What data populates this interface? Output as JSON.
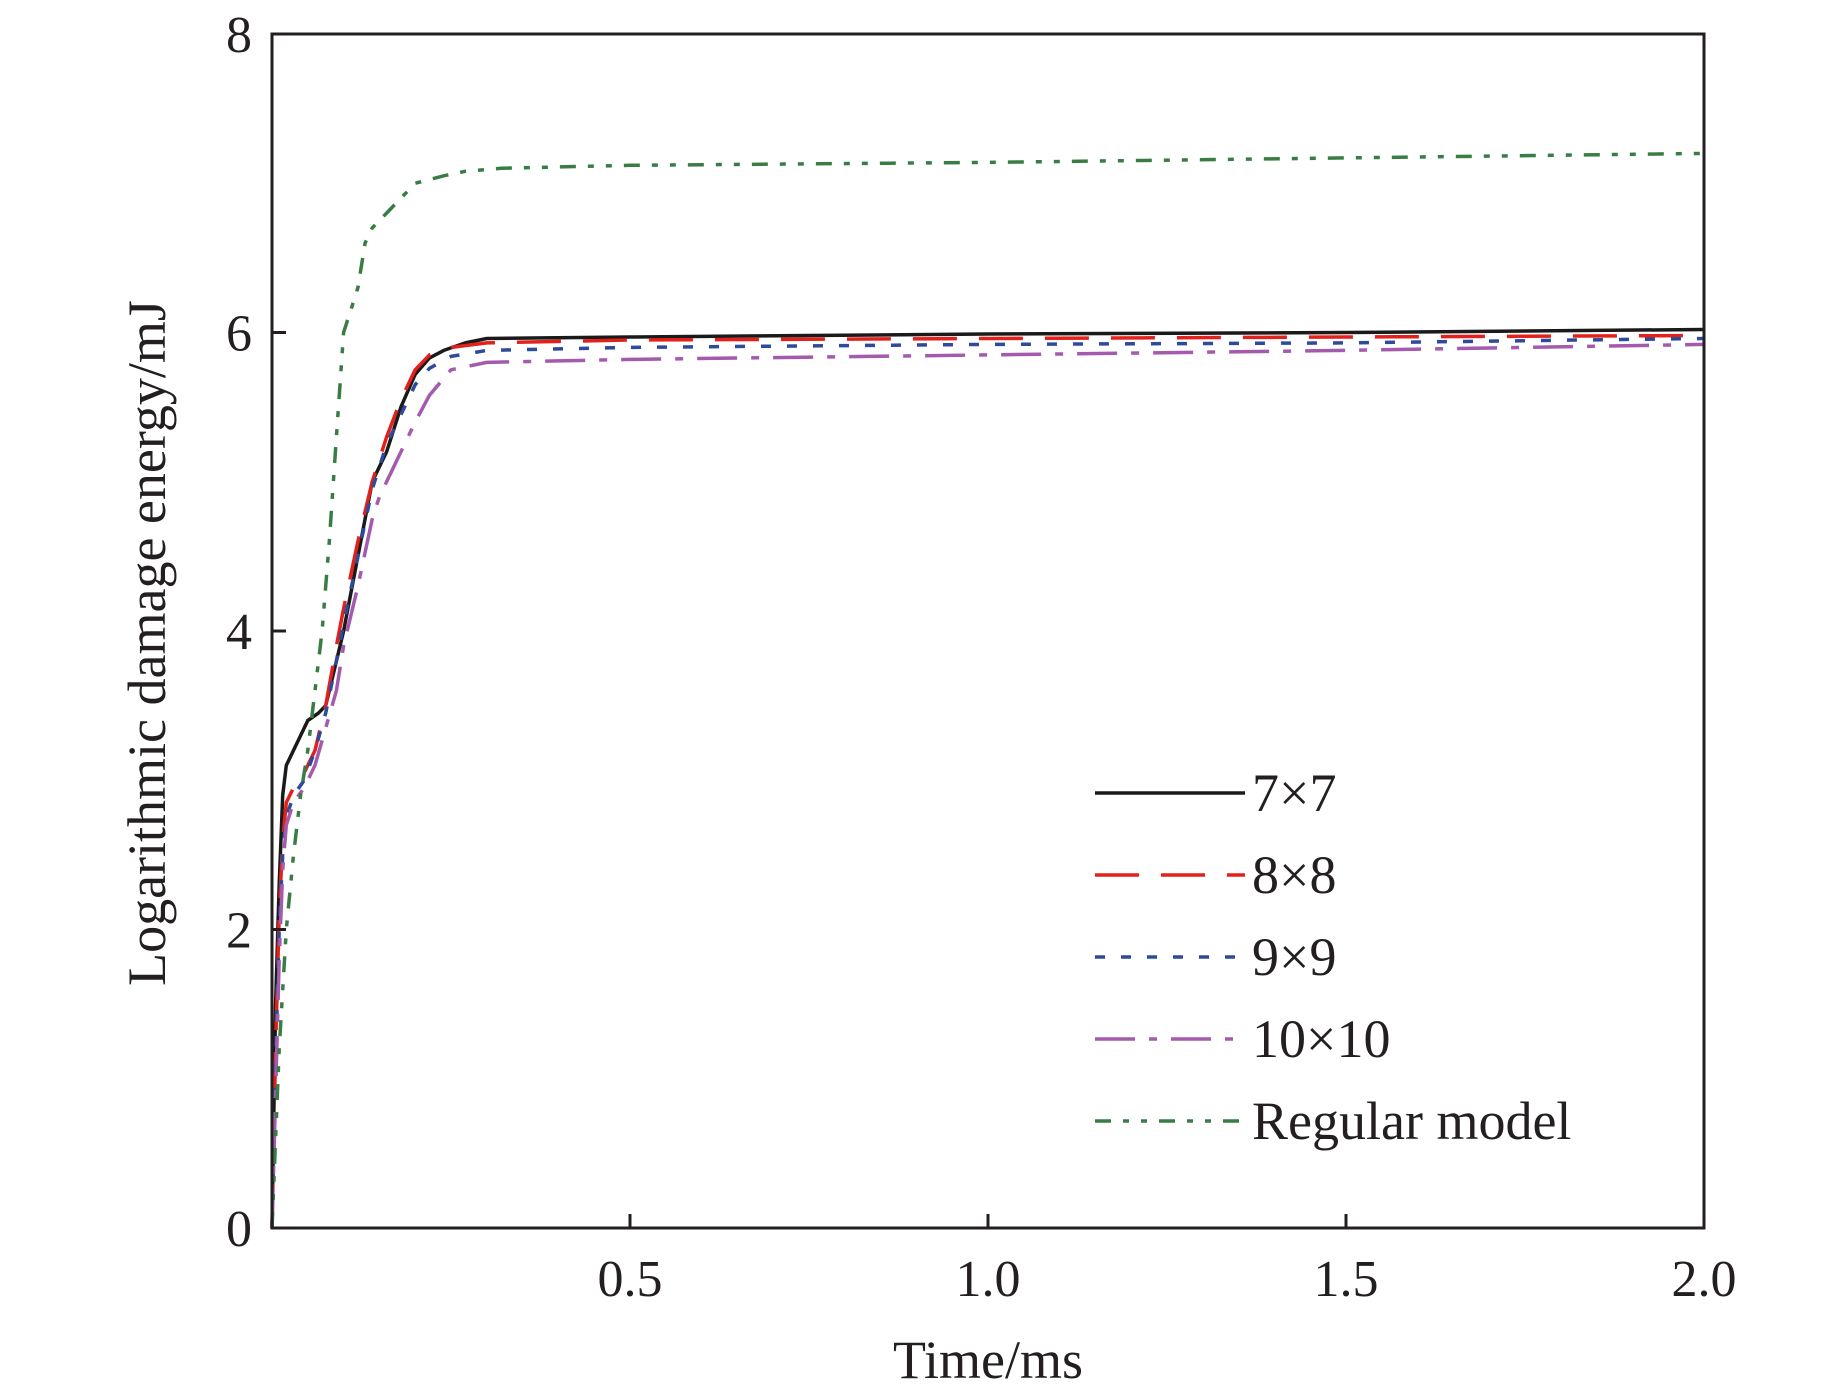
{
  "chart_data": {
    "type": "line",
    "title": "",
    "xlabel": "Time/ms",
    "ylabel": "Logarithmic damage energy/mJ",
    "xlim": [
      0,
      2.0
    ],
    "ylim": [
      0,
      8
    ],
    "xticks": [
      0.5,
      1.0,
      1.5,
      2.0
    ],
    "xtick_labels": [
      "0.5",
      "1.0",
      "1.5",
      "2.0"
    ],
    "yticks": [
      0,
      2,
      4,
      6,
      8
    ],
    "ytick_labels": [
      "0",
      "2",
      "4",
      "6",
      "8"
    ],
    "grid": false,
    "legend_position": "bottom-right",
    "series": [
      {
        "name": "7×7",
        "color": "#1a1a1a",
        "style": "solid",
        "x": [
          0.0,
          0.005,
          0.01,
          0.015,
          0.02,
          0.025,
          0.035,
          0.05,
          0.065,
          0.075,
          0.085,
          0.1,
          0.12,
          0.14,
          0.15,
          0.16,
          0.18,
          0.2,
          0.22,
          0.24,
          0.27,
          0.3,
          0.5,
          1.0,
          1.5,
          2.0
        ],
        "y": [
          0.0,
          1.5,
          2.3,
          2.9,
          3.1,
          3.15,
          3.25,
          3.4,
          3.45,
          3.5,
          3.7,
          4.0,
          4.5,
          5.0,
          5.1,
          5.2,
          5.5,
          5.72,
          5.83,
          5.88,
          5.93,
          5.96,
          5.97,
          5.99,
          6.0,
          6.02
        ]
      },
      {
        "name": "8×8",
        "color": "#e2211c",
        "style": "dashed",
        "x": [
          0.0,
          0.005,
          0.01,
          0.015,
          0.02,
          0.03,
          0.045,
          0.06,
          0.075,
          0.09,
          0.1,
          0.12,
          0.14,
          0.15,
          0.16,
          0.18,
          0.2,
          0.22,
          0.25,
          0.3,
          0.5,
          1.0,
          1.5,
          2.0
        ],
        "y": [
          0.0,
          1.2,
          2.1,
          2.6,
          2.85,
          2.95,
          3.05,
          3.2,
          3.5,
          3.9,
          4.15,
          4.6,
          5.0,
          5.15,
          5.3,
          5.55,
          5.75,
          5.85,
          5.9,
          5.93,
          5.95,
          5.96,
          5.97,
          5.98
        ]
      },
      {
        "name": "9×9",
        "color": "#2e4b9b",
        "style": "dotted",
        "x": [
          0.0,
          0.005,
          0.01,
          0.015,
          0.02,
          0.03,
          0.045,
          0.06,
          0.075,
          0.09,
          0.1,
          0.12,
          0.14,
          0.15,
          0.16,
          0.18,
          0.2,
          0.22,
          0.25,
          0.3,
          0.5,
          1.0,
          1.5,
          2.0
        ],
        "y": [
          0.0,
          1.1,
          2.0,
          2.5,
          2.75,
          2.9,
          3.0,
          3.2,
          3.45,
          3.8,
          4.05,
          4.5,
          4.95,
          5.1,
          5.25,
          5.45,
          5.65,
          5.76,
          5.84,
          5.88,
          5.9,
          5.92,
          5.93,
          5.96
        ]
      },
      {
        "name": "10×10",
        "color": "#a45aad",
        "style": "dash-dot",
        "x": [
          0.0,
          0.005,
          0.01,
          0.015,
          0.02,
          0.03,
          0.045,
          0.06,
          0.075,
          0.09,
          0.1,
          0.12,
          0.14,
          0.15,
          0.16,
          0.18,
          0.2,
          0.22,
          0.25,
          0.3,
          0.5,
          1.0,
          1.5,
          2.0
        ],
        "y": [
          0.0,
          0.9,
          1.8,
          2.4,
          2.7,
          2.85,
          2.95,
          3.1,
          3.35,
          3.6,
          3.9,
          4.3,
          4.75,
          4.9,
          5.0,
          5.2,
          5.4,
          5.58,
          5.75,
          5.8,
          5.82,
          5.85,
          5.88,
          5.92
        ]
      },
      {
        "name": "Regular model",
        "color": "#3a7d44",
        "style": "dash-dot-dot",
        "x": [
          0.0,
          0.005,
          0.01,
          0.02,
          0.03,
          0.04,
          0.05,
          0.06,
          0.07,
          0.08,
          0.09,
          0.1,
          0.11,
          0.12,
          0.13,
          0.14,
          0.16,
          0.2,
          0.24,
          0.27,
          0.32,
          0.5,
          1.0,
          1.5,
          2.0
        ],
        "y": [
          0.0,
          0.6,
          1.2,
          2.0,
          2.5,
          2.9,
          3.2,
          3.6,
          4.0,
          4.6,
          5.3,
          6.0,
          6.15,
          6.3,
          6.6,
          6.7,
          6.8,
          7.0,
          7.05,
          7.08,
          7.1,
          7.12,
          7.14,
          7.17,
          7.2
        ]
      }
    ]
  }
}
